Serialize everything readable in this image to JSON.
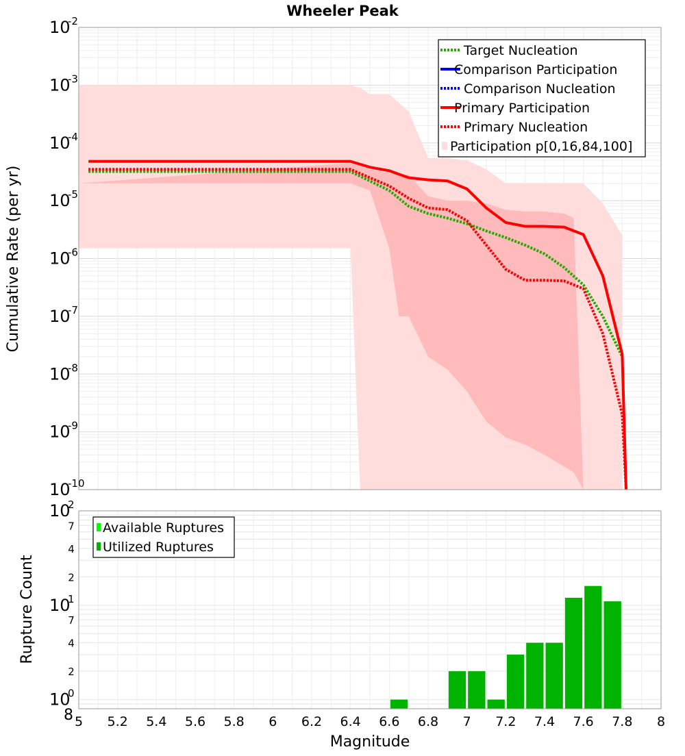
{
  "chart_data": [
    {
      "type": "line",
      "title": "Wheeler Peak",
      "ylabel": "Cumulative Rate (per yr)",
      "yscale": "log",
      "xlim": [
        5,
        8
      ],
      "ylim": [
        1e-10,
        0.01
      ],
      "y_tick_labels": [
        {
          "base": "10",
          "exp": "-2"
        },
        {
          "base": "10",
          "exp": "-3"
        },
        {
          "base": "10",
          "exp": "-4"
        },
        {
          "base": "10",
          "exp": "-5"
        },
        {
          "base": "10",
          "exp": "-6"
        },
        {
          "base": "10",
          "exp": "-7"
        },
        {
          "base": "10",
          "exp": "-8"
        },
        {
          "base": "10",
          "exp": "-9"
        },
        {
          "base": "10",
          "exp": "-10"
        }
      ],
      "legend": [
        {
          "label": "Target Nucleation",
          "color": "#22aa00",
          "style": "dotted"
        },
        {
          "label": "Comparison Participation",
          "color": "#0000ff",
          "style": "solid"
        },
        {
          "label": "Comparison Nucleation",
          "color": "#0000ff",
          "style": "dotted"
        },
        {
          "label": "Primary Participation",
          "color": "#ff0000",
          "style": "solid"
        },
        {
          "label": "Primary Nucleation",
          "color": "#ff0000",
          "style": "dotted"
        },
        {
          "label": "Participation p[0,16,84,100]",
          "color": "#ffdddd",
          "style": "band"
        }
      ],
      "legend_position": "top-right",
      "series": [
        {
          "name": "Target Nucleation",
          "color": "#22aa00",
          "style": "dotted",
          "x": [
            5.05,
            6.4,
            6.5,
            6.6,
            6.7,
            6.8,
            6.9,
            7.0,
            7.1,
            7.2,
            7.3,
            7.4,
            7.5,
            7.6,
            7.7,
            7.8
          ],
          "y": [
            3.2e-05,
            3.2e-05,
            2.2e-05,
            1.5e-05,
            8e-06,
            6e-06,
            5e-06,
            4e-06,
            3e-06,
            2.3e-06,
            1.7e-06,
            1.2e-06,
            7e-07,
            3.5e-07,
            1e-07,
            2e-08
          ]
        },
        {
          "name": "Primary Participation",
          "color": "#ff0000",
          "style": "solid",
          "x": [
            5.05,
            6.4,
            6.5,
            6.6,
            6.7,
            6.8,
            6.9,
            7.0,
            7.1,
            7.2,
            7.3,
            7.4,
            7.5,
            7.6,
            7.7,
            7.8,
            7.82
          ],
          "y": [
            4.8e-05,
            4.8e-05,
            3.8e-05,
            3.3e-05,
            2.5e-05,
            2.3e-05,
            2.2e-05,
            1.6e-05,
            7.5e-06,
            4.2e-06,
            3.6e-06,
            3.6e-06,
            3.5e-06,
            2.6e-06,
            5e-07,
            2.2e-08,
            1e-10
          ]
        },
        {
          "name": "Primary Nucleation",
          "color": "#ff0000",
          "style": "dotted",
          "x": [
            5.05,
            6.4,
            6.5,
            6.6,
            6.7,
            6.8,
            6.9,
            7.0,
            7.1,
            7.2,
            7.3,
            7.4,
            7.5,
            7.6,
            7.7,
            7.8,
            7.82
          ],
          "y": [
            3.5e-05,
            3.5e-05,
            2.5e-05,
            1.8e-05,
            1.1e-05,
            7.5e-06,
            7e-06,
            4.5e-06,
            1.7e-06,
            6.5e-07,
            4.2e-07,
            4.2e-07,
            4.1e-07,
            3e-07,
            5e-08,
            2e-09,
            1e-10
          ]
        }
      ],
      "bands": [
        {
          "name": "p0-p100",
          "color": "#ffdddd",
          "x": [
            5.0,
            6.4,
            6.45,
            6.5,
            6.6,
            6.7,
            6.8,
            6.9,
            7.0,
            7.1,
            7.2,
            7.3,
            7.4,
            7.5,
            7.6,
            7.7,
            7.8
          ],
          "upper": [
            0.001,
            0.001,
            0.0009,
            0.0007,
            0.0007,
            0.00035,
            5.5e-05,
            5.5e-05,
            5e-05,
            3.5e-05,
            2e-05,
            2e-05,
            2e-05,
            2e-05,
            2e-05,
            9e-06,
            2.5e-06
          ],
          "lower": [
            1.5e-06,
            1.5e-06,
            1e-10,
            1e-10,
            1e-10,
            1e-10,
            1e-10,
            1e-10,
            1e-10,
            1e-10,
            1e-10,
            1e-10,
            1e-10,
            1e-10,
            1e-10,
            1e-10,
            1e-10
          ]
        },
        {
          "name": "p16-p84",
          "color": "#ffbbbb",
          "x": [
            5.0,
            6.4,
            6.5,
            6.6,
            6.65,
            6.7,
            6.8,
            6.9,
            7.0,
            7.1,
            7.2,
            7.3,
            7.4,
            7.5,
            7.55,
            7.6
          ],
          "upper": [
            2e-05,
            4.5e-05,
            3.5e-05,
            3e-05,
            2.8e-05,
            2.8e-05,
            1.2e-05,
            1e-05,
            1e-05,
            9e-06,
            7e-06,
            6.5e-06,
            6.5e-06,
            6e-06,
            5e-06,
            1e-10
          ],
          "lower": [
            2e-05,
            2e-05,
            1.5e-05,
            1.5e-06,
            1e-07,
            1e-07,
            2e-08,
            1.2e-08,
            5e-09,
            1.5e-09,
            8e-10,
            6e-10,
            4e-10,
            2.5e-10,
            2e-10,
            1e-10
          ]
        }
      ]
    },
    {
      "type": "bar",
      "xlabel": "Magnitude",
      "ylabel": "Rupture Count",
      "yscale": "log",
      "xlim": [
        5,
        8
      ],
      "ylim": [
        0.8,
        100
      ],
      "x_tick_labels": [
        "5",
        "5.2",
        "5.4",
        "5.6",
        "5.8",
        "6",
        "6.2",
        "6.4",
        "6.6",
        "6.8",
        "7",
        "7.2",
        "7.4",
        "7.6",
        "7.8",
        "8"
      ],
      "y_decade_labels": [
        {
          "base": "10",
          "exp": "0"
        },
        {
          "base": "10",
          "exp": "1"
        },
        {
          "base": "10",
          "exp": "2"
        }
      ],
      "y_minor_labels": [
        "8",
        "2",
        "4",
        "7",
        "2",
        "4",
        "7"
      ],
      "legend": [
        {
          "label": "Available Ruptures",
          "color": "#00ff00"
        },
        {
          "label": "Utilized Ruptures",
          "color": "#00b300"
        }
      ],
      "legend_position": "top-left",
      "bar_color": "#00b300",
      "bar_width": 0.1,
      "x": [
        6.65,
        6.95,
        7.05,
        7.15,
        7.25,
        7.35,
        7.45,
        7.55,
        7.65,
        7.75
      ],
      "values": [
        1,
        2,
        2,
        1,
        3,
        4,
        4,
        12,
        16,
        11
      ]
    }
  ]
}
